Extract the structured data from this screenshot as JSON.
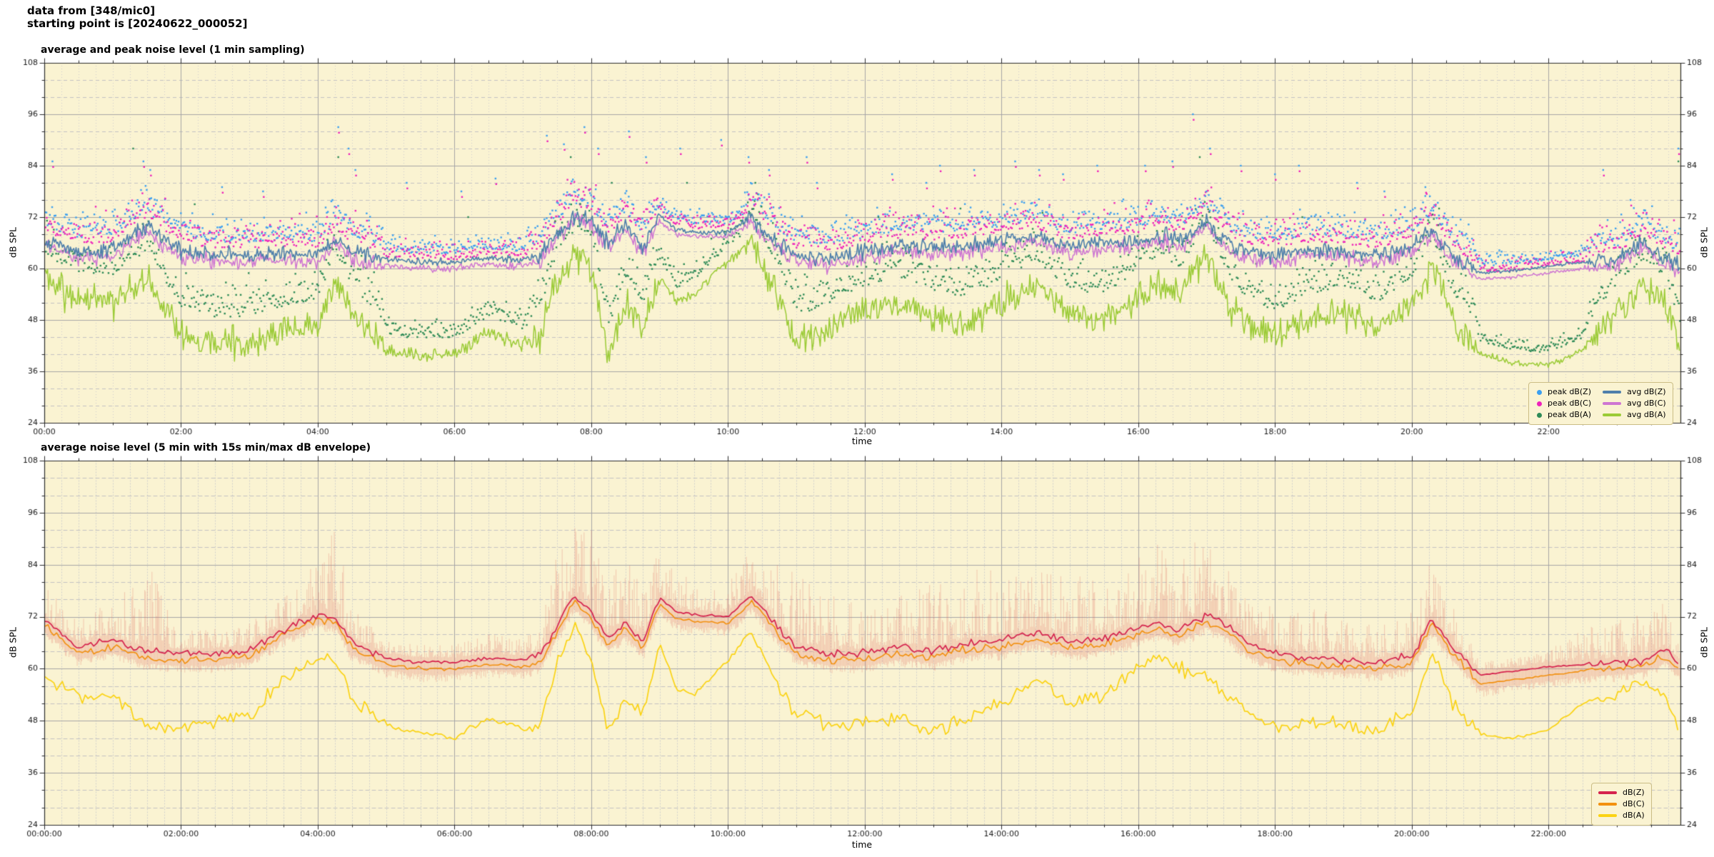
{
  "header": {
    "line1": "data from [348/mic0]",
    "line2": "starting point is [20240622_000052]"
  },
  "colors": {
    "figure_bg": "#ffffff",
    "plot_bg": "#FAF3D2",
    "grid_major": "#a6a6a6",
    "grid_minor_y": "#c2c2c2",
    "grid_minor_x": "#cdcdcd",
    "spine": "#2b2b2b",
    "tick_label": "#1a1a1a",
    "legend_border": "#cbbd85"
  },
  "chart_data": [
    {
      "type": "line+scatter",
      "title": "average and peak noise level (1 min sampling)",
      "xlabel": "time",
      "ylabel": "dB SPL",
      "ylim": [
        24,
        108
      ],
      "xlim_hours": [
        0,
        23.93
      ],
      "y_ticks": [
        108,
        96,
        84,
        72,
        60,
        48,
        36,
        24
      ],
      "y_minor_step": 4,
      "x_tick_hours": [
        0,
        2,
        4,
        6,
        8,
        10,
        12,
        14,
        16,
        18,
        20,
        22
      ],
      "x_tick_labels": [
        "00:00",
        "02:00",
        "04:00",
        "06:00",
        "08:00",
        "10:00",
        "12:00",
        "14:00",
        "16:00",
        "18:00",
        "20:00",
        "22:00"
      ],
      "grid": true,
      "legend_position": "lower right",
      "legend": {
        "peaks": [
          {
            "label": "peak dB(Z)",
            "color": "#3B9FF0",
            "marker": "dot"
          },
          {
            "label": "peak dB(C)",
            "color": "#EE22BB",
            "marker": "dot"
          },
          {
            "label": "peak dB(A)",
            "color": "#2E8B57",
            "marker": "dot"
          }
        ],
        "avgs": [
          {
            "label": "avg dB(Z)",
            "color": "#4E7FAB",
            "marker": "line"
          },
          {
            "label": "avg dB(C)",
            "color": "#CE75D2",
            "marker": "line"
          },
          {
            "label": "avg dB(A)",
            "color": "#9BCB36",
            "marker": "line"
          }
        ]
      },
      "t_hours": [
        0,
        0.5,
        1,
        1.5,
        2,
        2.5,
        3,
        3.5,
        4,
        4.25,
        4.5,
        5,
        5.5,
        6,
        6.5,
        7,
        7.25,
        7.5,
        7.75,
        8,
        8.25,
        8.5,
        8.75,
        9,
        9.25,
        9.5,
        10,
        10.35,
        10.7,
        11,
        11.5,
        12,
        12.5,
        13,
        13.5,
        14,
        14.5,
        15,
        15.5,
        16,
        16.3,
        16.6,
        17,
        17.3,
        17.6,
        18,
        18.5,
        19,
        19.5,
        20,
        20.3,
        20.6,
        21,
        21.5,
        22,
        22.5,
        23,
        23.4,
        23.7,
        23.93
      ],
      "series": {
        "avg_dbz": [
          66.5,
          64,
          64.5,
          70,
          64,
          63,
          63,
          63.5,
          63,
          67,
          64,
          62,
          61.5,
          61.5,
          62.5,
          62,
          63,
          68,
          72,
          71,
          66,
          70,
          65,
          72,
          69,
          68.5,
          68.5,
          72,
          66,
          63,
          62.5,
          64,
          65.5,
          65,
          65.5,
          66.5,
          67.5,
          65,
          66,
          66.5,
          68,
          66.5,
          71,
          66,
          64,
          63,
          64.5,
          64,
          63,
          65,
          69,
          63,
          59,
          59.5,
          60.5,
          61.5,
          62,
          66,
          62,
          61
        ],
        "avg_dbc": [
          65.5,
          62.5,
          63,
          69,
          62.5,
          61.5,
          61.5,
          62,
          61.5,
          66,
          62.5,
          60.5,
          60,
          60,
          61,
          60.5,
          61.5,
          67,
          71.5,
          70,
          65,
          69,
          64,
          71,
          68,
          67.5,
          67.5,
          71,
          65,
          61.5,
          61,
          62.5,
          64,
          63.5,
          64,
          65,
          66,
          63.5,
          64.5,
          65,
          66.5,
          65,
          70,
          64.5,
          62.5,
          61.5,
          63,
          62.5,
          61.5,
          63.5,
          68,
          61.5,
          57.5,
          58,
          59,
          60,
          60.5,
          65,
          60.5,
          59.5
        ],
        "avg_dba": [
          57,
          53,
          52,
          58,
          45,
          42.5,
          43,
          45,
          47,
          58,
          50,
          41,
          39.5,
          40,
          45,
          42,
          44,
          58,
          63,
          61,
          40,
          52,
          46,
          58,
          52,
          54,
          62,
          66,
          55,
          43,
          46,
          50,
          52,
          49,
          47,
          52,
          56,
          49,
          48,
          53,
          57,
          54,
          64,
          52,
          47,
          44,
          48,
          50,
          46,
          52,
          61,
          48,
          40,
          38,
          37.5,
          41,
          50,
          56,
          52,
          40
        ]
      },
      "peak_params": {
        "step_min": 1.0,
        "zc_base_offset": 3.2,
        "zc_spread": 3.4,
        "a_base_offset": 6.0,
        "a_spread": 4.5
      },
      "peak_outliers_zc": [
        [
          0.12,
          85
        ],
        [
          1.45,
          85
        ],
        [
          1.55,
          83
        ],
        [
          2.6,
          79
        ],
        [
          3.2,
          78
        ],
        [
          4.3,
          93
        ],
        [
          4.45,
          88
        ],
        [
          4.55,
          83
        ],
        [
          5.3,
          80
        ],
        [
          6.1,
          78
        ],
        [
          6.6,
          81
        ],
        [
          7.35,
          91
        ],
        [
          7.6,
          89
        ],
        [
          7.9,
          93
        ],
        [
          8.1,
          88
        ],
        [
          8.55,
          92
        ],
        [
          8.8,
          86
        ],
        [
          9.3,
          88
        ],
        [
          9.9,
          90
        ],
        [
          10.3,
          86
        ],
        [
          10.6,
          83
        ],
        [
          11.15,
          86
        ],
        [
          11.3,
          80
        ],
        [
          12.4,
          82
        ],
        [
          12.9,
          80
        ],
        [
          13.1,
          84
        ],
        [
          13.6,
          83
        ],
        [
          14.2,
          85
        ],
        [
          14.55,
          83
        ],
        [
          14.9,
          82
        ],
        [
          15.4,
          84
        ],
        [
          16.1,
          84
        ],
        [
          16.5,
          85
        ],
        [
          16.8,
          96
        ],
        [
          17.05,
          88
        ],
        [
          17.5,
          84
        ],
        [
          18.0,
          82
        ],
        [
          18.35,
          84
        ],
        [
          19.2,
          80
        ],
        [
          19.6,
          78
        ],
        [
          20.2,
          79
        ],
        [
          22.8,
          83
        ],
        [
          23.2,
          76
        ],
        [
          23.9,
          88
        ]
      ],
      "peak_outliers_a": [
        [
          1.3,
          88
        ],
        [
          2.2,
          75
        ],
        [
          4.3,
          86
        ],
        [
          6.2,
          72
        ],
        [
          7.7,
          86
        ],
        [
          8.3,
          80
        ],
        [
          9.4,
          80
        ],
        [
          10.4,
          80
        ],
        [
          12.2,
          72
        ],
        [
          13.4,
          74
        ],
        [
          14.6,
          73
        ],
        [
          16.9,
          86
        ],
        [
          18.4,
          72
        ],
        [
          20.4,
          74
        ],
        [
          23.9,
          85
        ]
      ],
      "noise_scale": {
        "t": [
          0,
          4.9,
          5.0,
          7.0,
          7.2,
          8.9,
          9.05,
          10.2,
          10.4,
          20.9,
          21.0,
          22.5,
          22.7,
          23.93
        ],
        "v": [
          1,
          1,
          0.45,
          0.45,
          1,
          1,
          0.35,
          0.35,
          1,
          1,
          0.2,
          0.2,
          1,
          1
        ]
      },
      "line_noise_db": {
        "z": 1.1,
        "c": 1.1,
        "a": 2.2
      }
    },
    {
      "type": "line+envelope",
      "title": "average noise level (5 min with 15s min/max dB envelope)",
      "xlabel": "time",
      "ylabel": "dB SPL",
      "ylim": [
        24,
        108
      ],
      "xlim_hours": [
        0,
        23.93
      ],
      "y_ticks": [
        108,
        96,
        84,
        72,
        60,
        48,
        36,
        24
      ],
      "y_minor_step": 4,
      "x_tick_hours": [
        0,
        2,
        4,
        6,
        8,
        10,
        12,
        14,
        16,
        18,
        20,
        22
      ],
      "x_tick_labels": [
        "00:00:00",
        "02:00:00",
        "04:00:00",
        "06:00:00",
        "08:00:00",
        "10:00:00",
        "12:00:00",
        "14:00:00",
        "16:00:00",
        "18:00:00",
        "20:00:00",
        "22:00:00"
      ],
      "grid": true,
      "legend_position": "lower right",
      "legend": {
        "lines": [
          {
            "label": "dB(Z)",
            "color": "#D5234E",
            "marker": "line"
          },
          {
            "label": "dB(C)",
            "color": "#F2900F",
            "marker": "line"
          },
          {
            "label": "dB(A)",
            "color": "#FBD313",
            "marker": "line"
          }
        ]
      },
      "envelope_color": "rgba(224,112,102,0.30)",
      "t_hours": [
        0,
        0.5,
        1,
        1.5,
        2,
        2.5,
        3,
        3.5,
        4,
        4.25,
        4.5,
        5,
        5.5,
        6,
        6.5,
        7,
        7.25,
        7.5,
        7.75,
        8,
        8.25,
        8.5,
        8.75,
        9,
        9.25,
        9.5,
        10,
        10.35,
        10.7,
        11,
        11.5,
        12,
        12.5,
        13,
        13.5,
        14,
        14.5,
        15,
        15.5,
        16,
        16.3,
        16.6,
        17,
        17.3,
        17.6,
        18,
        18.5,
        19,
        19.5,
        20,
        20.3,
        20.6,
        21,
        21.5,
        22,
        22.5,
        23,
        23.4,
        23.7,
        23.93
      ],
      "series": {
        "dbz": [
          71,
          65,
          66.5,
          64,
          63.5,
          63.5,
          64.5,
          69,
          72.5,
          72,
          66,
          62.5,
          61.5,
          61.5,
          62.5,
          62,
          63,
          70,
          77,
          73,
          67,
          70.5,
          66,
          76.5,
          73,
          72.5,
          72,
          77,
          70,
          65,
          63.5,
          63.5,
          65,
          64,
          66,
          66.5,
          68.5,
          66,
          67,
          69.5,
          70.5,
          69,
          72.5,
          70,
          66,
          63.5,
          62.5,
          62,
          61.5,
          63,
          71.5,
          65,
          58.5,
          59.5,
          60.5,
          61,
          61.5,
          62,
          64.5,
          61
        ],
        "dbc": [
          70,
          63.5,
          65,
          62.5,
          62,
          62,
          63,
          68,
          71.5,
          71,
          64.5,
          61,
          60,
          60,
          61,
          60.5,
          61.5,
          68.5,
          75.5,
          71.5,
          65.5,
          69,
          64.5,
          75,
          71.5,
          71,
          70.5,
          75.5,
          68.5,
          63.5,
          62,
          62,
          63.5,
          62.5,
          64.5,
          65,
          67,
          64.5,
          65.5,
          68,
          69,
          67.5,
          71,
          68.5,
          64.5,
          62,
          61,
          60.5,
          60,
          61.5,
          70,
          63.5,
          56.5,
          57.5,
          58.5,
          59.5,
          60,
          60.5,
          63,
          59.5
        ],
        "dba": [
          57.5,
          53.5,
          54,
          47,
          46.5,
          48,
          49.5,
          57,
          62.5,
          62,
          53,
          47,
          45,
          44,
          48.5,
          46,
          47,
          62,
          70,
          62,
          45,
          53,
          49,
          66,
          55,
          54,
          62,
          69,
          57,
          50,
          47,
          47.5,
          49,
          46,
          48,
          52,
          57.5,
          52,
          54,
          60,
          63,
          60,
          58,
          54,
          50,
          46,
          47.5,
          47,
          45.5,
          50,
          64,
          52,
          45,
          44,
          46,
          52,
          54,
          57,
          54,
          44
        ],
        "env_max_extra_db": [
          9,
          7,
          7,
          20,
          5,
          5,
          5,
          7,
          12,
          20,
          8,
          3,
          3,
          3,
          5,
          4,
          6,
          16,
          17,
          18,
          16,
          15,
          12,
          10,
          8,
          7,
          7,
          10,
          14,
          17,
          14,
          9,
          11,
          17,
          17,
          15,
          13,
          15,
          13,
          16,
          18,
          19,
          16,
          13,
          11,
          9,
          11,
          9,
          7,
          9,
          14,
          10,
          2,
          2,
          3,
          7,
          9,
          10,
          11,
          7
        ]
      },
      "envelope_params": {
        "step_min": 0.8,
        "min_drop_db": 3.0
      },
      "noise_scale": {
        "t": [
          0,
          4.9,
          5.0,
          7.0,
          7.2,
          8.9,
          9.05,
          10.2,
          10.4,
          20.9,
          21.0,
          22.5,
          22.7,
          23.93
        ],
        "v": [
          1,
          1,
          0.45,
          0.45,
          1,
          1,
          0.35,
          0.35,
          1,
          1,
          0.2,
          0.2,
          1,
          1
        ]
      },
      "line_noise_db": {
        "z": 0.55,
        "c": 0.55,
        "a": 1.0
      }
    }
  ]
}
